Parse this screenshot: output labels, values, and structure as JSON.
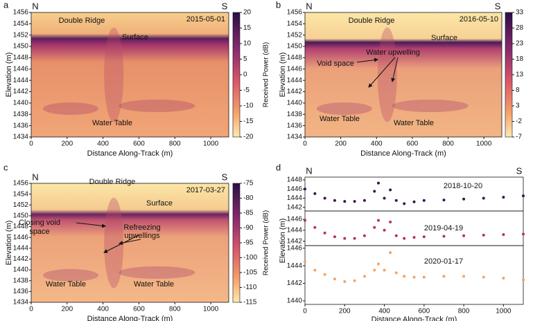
{
  "chart_data": [
    {
      "type": "heatmap",
      "panel_label": "a",
      "date": "2015-05-01",
      "corner_labels": [
        "N",
        "S"
      ],
      "xlabel": "Distance Along-Track (m)",
      "ylabel": "Elevation (m)",
      "xlim": [
        0,
        1100
      ],
      "xticks": [
        0,
        200,
        400,
        600,
        800,
        1000
      ],
      "ylim": [
        1434,
        1456
      ],
      "yticks": [
        1434,
        1436,
        1438,
        1440,
        1442,
        1444,
        1446,
        1448,
        1450,
        1452,
        1454,
        1456
      ],
      "colorbar": {
        "label": "Received Power (dB)",
        "lim": [
          -20,
          20
        ],
        "ticks": [
          20,
          15,
          10,
          5,
          0,
          -5,
          -10,
          -15,
          -20
        ]
      },
      "annotations": [
        "Double Ridge",
        "Surface",
        "Water Table"
      ]
    },
    {
      "type": "heatmap",
      "panel_label": "b",
      "date": "2016-05-10",
      "corner_labels": [
        "N",
        "S"
      ],
      "xlabel": "Distance Along-Track (m)",
      "ylabel": "Elevation (m)",
      "xlim": [
        0,
        1100
      ],
      "xticks": [
        0,
        200,
        400,
        600,
        800,
        1000
      ],
      "ylim": [
        1434,
        1456
      ],
      "yticks": [
        1434,
        1436,
        1438,
        1440,
        1442,
        1444,
        1446,
        1448,
        1450,
        1452,
        1454,
        1456
      ],
      "colorbar": {
        "label": "Received Power (dB)",
        "lim": [
          -7,
          33
        ],
        "ticks": [
          33,
          28,
          23,
          18,
          13,
          8,
          3,
          -2,
          -7
        ]
      },
      "annotations": [
        "Double Ridge",
        "Surface",
        "Void space",
        "Water upwelling",
        "Water Table",
        "Water Table"
      ]
    },
    {
      "type": "heatmap",
      "panel_label": "c",
      "date": "2017-03-27",
      "corner_labels": [
        "N",
        "S"
      ],
      "xlabel": "Distance Along-Track (m)",
      "ylabel": "Elevation (m)",
      "xlim": [
        0,
        1100
      ],
      "xticks": [
        0,
        200,
        400,
        600,
        800,
        1000
      ],
      "ylim": [
        1434,
        1456
      ],
      "yticks": [
        1434,
        1436,
        1438,
        1440,
        1442,
        1444,
        1446,
        1448,
        1450,
        1452,
        1454,
        1456
      ],
      "colorbar": {
        "label": "Received Power (dB)",
        "lim": [
          -115,
          -75
        ],
        "ticks": [
          -75,
          -80,
          -85,
          -90,
          -95,
          -100,
          -105,
          -110,
          -115
        ]
      },
      "annotations": [
        "Double Ridge",
        "Surface",
        "Closing void",
        "space",
        "Refreezing",
        "upwellings",
        "Water Table",
        "Water Table"
      ]
    },
    {
      "type": "scatter",
      "panel_label": "d",
      "corner_labels": [
        "N",
        "S"
      ],
      "xlabel": "Distance Along-Track (m)",
      "ylabel": "Elevation (m)",
      "xlim": [
        0,
        1100
      ],
      "xticks": [
        0,
        200,
        400,
        600,
        800,
        1000
      ],
      "x": [
        0,
        50,
        100,
        150,
        200,
        250,
        300,
        350,
        370,
        400,
        430,
        460,
        500,
        550,
        600,
        700,
        800,
        900,
        1000,
        1100
      ],
      "series": [
        {
          "name": "2018-10-20",
          "color": "#3b1452",
          "ylim": [
            1441.2,
            1448.6
          ],
          "yticks": [
            1442,
            1444,
            1446,
            1448
          ],
          "values": [
            1446,
            1445,
            1444,
            1443.5,
            1443.3,
            1443.3,
            1443.5,
            1445.5,
            1447.3,
            1444,
            1445.8,
            1443.5,
            1442.8,
            1443.2,
            1443.5,
            1443.6,
            1443.8,
            1444,
            1444.2,
            1444.5
          ]
        },
        {
          "name": "2019-04-19",
          "color": "#b8305f",
          "ylim": [
            1441.2,
            1447.5
          ],
          "yticks": [
            1442,
            1444,
            1446
          ],
          "values": [
            1445.8,
            1444.5,
            1443.5,
            1442.8,
            1442.5,
            1442.5,
            1443,
            1444.5,
            1445.8,
            1444,
            1445.5,
            1443,
            1442.5,
            1442.7,
            1442.8,
            1442.9,
            1443,
            1443.1,
            1443.2,
            1443.3
          ]
        },
        {
          "name": "2020-01-17",
          "color": "#f2a466",
          "ylim": [
            1439.6,
            1446.3
          ],
          "yticks": [
            1440,
            1442,
            1444,
            1446
          ],
          "values": [
            1444.5,
            1443.5,
            1443,
            1442.5,
            1442.2,
            1442.3,
            1442.8,
            1443.5,
            1444.2,
            1443.5,
            1445.5,
            1443.2,
            1442.8,
            1442.7,
            1442.7,
            1442.8,
            1442.8,
            1442.7,
            1442.6,
            1442.4
          ]
        }
      ]
    }
  ]
}
